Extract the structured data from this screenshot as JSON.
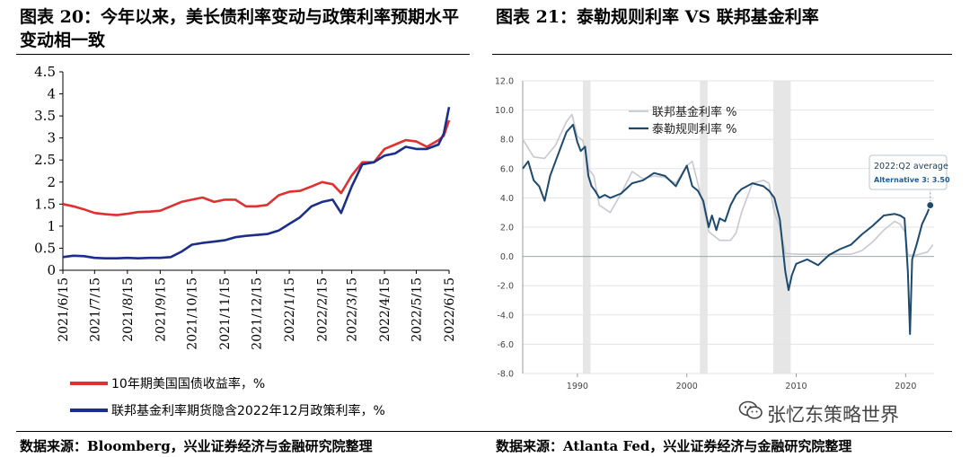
{
  "left_panel": {
    "title": "图表 20：今年以来，美长债利率变动与政策利率预期水平变动相一致",
    "source": "数据来源：Bloomberg，兴业证券经济与金融研究院整理"
  },
  "right_panel": {
    "title": "图表 21：泰勒规则利率 VS 联邦基金利率",
    "source": "数据来源：Atlanta Fed，兴业证券经济与金融研究院整理"
  },
  "watermark": {
    "text": "张忆东策略世界",
    "icon": "wechat-icon"
  },
  "chart_data": [
    {
      "id": "left",
      "type": "line",
      "title": "",
      "xlabel": "",
      "ylabel": "",
      "ylim": [
        0,
        4.5
      ],
      "yticks": [
        0,
        0.5,
        1,
        1.5,
        2,
        2.5,
        3,
        3.5,
        4,
        4.5
      ],
      "ytick_labels": [
        "0",
        "0.5",
        "1",
        "1.5",
        "2",
        "2.5",
        "3",
        "3.5",
        "4",
        "4.5"
      ],
      "xticks": [
        "2021/6/15",
        "2021/7/15",
        "2021/8/15",
        "2021/9/15",
        "2021/10/15",
        "2021/11/15",
        "2021/12/15",
        "2022/1/15",
        "2022/2/15",
        "2022/3/15",
        "2022/4/15",
        "2022/5/15",
        "2022/6/15"
      ],
      "grid": false,
      "legend_position": "bottom",
      "series": [
        {
          "name": "10年期美国国债收益率，%",
          "color": "#e03030",
          "x": [
            "2021/6/15",
            "2021/6/25",
            "2021/7/5",
            "2021/7/15",
            "2021/7/25",
            "2021/8/5",
            "2021/8/15",
            "2021/8/25",
            "2021/9/5",
            "2021/9/15",
            "2021/9/25",
            "2021/10/5",
            "2021/10/15",
            "2021/10/25",
            "2021/11/5",
            "2021/11/15",
            "2021/11/25",
            "2021/12/5",
            "2021/12/15",
            "2021/12/25",
            "2022/1/5",
            "2022/1/15",
            "2022/1/25",
            "2022/2/5",
            "2022/2/15",
            "2022/2/25",
            "2022/3/5",
            "2022/3/15",
            "2022/3/25",
            "2022/4/5",
            "2022/4/15",
            "2022/4/25",
            "2022/5/5",
            "2022/5/15",
            "2022/5/25",
            "2022/6/5",
            "2022/6/10",
            "2022/6/15"
          ],
          "values": [
            1.5,
            1.45,
            1.38,
            1.3,
            1.27,
            1.25,
            1.28,
            1.32,
            1.33,
            1.35,
            1.45,
            1.55,
            1.6,
            1.65,
            1.55,
            1.6,
            1.6,
            1.45,
            1.45,
            1.48,
            1.7,
            1.78,
            1.8,
            1.9,
            2.0,
            1.95,
            1.75,
            2.15,
            2.45,
            2.45,
            2.75,
            2.85,
            2.95,
            2.92,
            2.8,
            2.95,
            3.05,
            3.4
          ]
        },
        {
          "name": "联邦基金利率期货隐含2022年12月政策利率，%",
          "color": "#1a2e8a",
          "x": [
            "2021/6/15",
            "2021/6/25",
            "2021/7/5",
            "2021/7/15",
            "2021/7/25",
            "2021/8/5",
            "2021/8/15",
            "2021/8/25",
            "2021/9/5",
            "2021/9/15",
            "2021/9/25",
            "2021/10/5",
            "2021/10/15",
            "2021/10/25",
            "2021/11/5",
            "2021/11/15",
            "2021/11/25",
            "2021/12/5",
            "2021/12/15",
            "2021/12/25",
            "2022/1/5",
            "2022/1/15",
            "2022/1/25",
            "2022/2/5",
            "2022/2/15",
            "2022/2/25",
            "2022/3/5",
            "2022/3/15",
            "2022/3/25",
            "2022/4/5",
            "2022/4/15",
            "2022/4/25",
            "2022/5/5",
            "2022/5/15",
            "2022/5/25",
            "2022/6/5",
            "2022/6/10",
            "2022/6/15"
          ],
          "values": [
            0.3,
            0.33,
            0.32,
            0.28,
            0.27,
            0.27,
            0.28,
            0.27,
            0.28,
            0.28,
            0.3,
            0.42,
            0.58,
            0.62,
            0.65,
            0.68,
            0.75,
            0.78,
            0.8,
            0.82,
            0.9,
            1.05,
            1.2,
            1.45,
            1.55,
            1.6,
            1.3,
            1.9,
            2.4,
            2.45,
            2.6,
            2.65,
            2.8,
            2.75,
            2.75,
            2.85,
            3.1,
            3.7
          ]
        }
      ]
    },
    {
      "id": "right",
      "type": "line",
      "title": "",
      "xlabel": "",
      "ylabel": "",
      "ylim": [
        -8,
        12
      ],
      "yticks": [
        -8,
        -6,
        -4,
        -2,
        0,
        2,
        4,
        6,
        8,
        10,
        12
      ],
      "ytick_labels": [
        "-8.0",
        "-6.0",
        "-4.0",
        "-2.0",
        "0.0",
        "2.0",
        "4.0",
        "6.0",
        "8.0",
        "10.0",
        "12.0"
      ],
      "xlim": [
        1985,
        2022.6
      ],
      "xticks": [
        1990,
        2000,
        2010,
        2020
      ],
      "xtick_labels": [
        "1990",
        "2000",
        "2010",
        "2020"
      ],
      "grid": true,
      "legend_position": "top-left",
      "recession_bands": [
        [
          1990.5,
          1991.2
        ],
        [
          2001.2,
          2001.9
        ],
        [
          2007.9,
          2009.5
        ]
      ],
      "annotation": {
        "x": 2022.25,
        "y": 3.5,
        "label": "2022:Q2 average",
        "sublabel": "Alternative 3: 3.50"
      },
      "series": [
        {
          "name": "联邦基金利率 %",
          "color": "#c8c8d0",
          "x": [
            1985,
            1986,
            1987,
            1988,
            1989,
            1989.5,
            1990,
            1990.5,
            1991,
            1991.5,
            1992,
            1993,
            1994,
            1995,
            1996,
            1997,
            1998,
            1999,
            2000,
            2000.5,
            2001,
            2001.5,
            2002,
            2003,
            2004,
            2004.5,
            2005,
            2006,
            2007,
            2007.5,
            2008,
            2008.5,
            2009,
            2010,
            2015,
            2016,
            2017,
            2018,
            2019,
            2019.5,
            2020,
            2020.2,
            2021,
            2022,
            2022.5
          ],
          "values": [
            8.0,
            6.8,
            6.7,
            7.6,
            9.2,
            9.7,
            8.2,
            7.9,
            6.0,
            5.5,
            3.5,
            3.0,
            4.3,
            5.8,
            5.3,
            5.5,
            5.4,
            5.0,
            6.2,
            6.5,
            5.0,
            3.5,
            1.7,
            1.1,
            1.1,
            1.6,
            3.0,
            5.0,
            5.2,
            5.0,
            3.0,
            2.0,
            0.2,
            0.15,
            0.15,
            0.4,
            1.0,
            1.8,
            2.4,
            2.2,
            1.6,
            0.1,
            0.1,
            0.3,
            0.8
          ]
        },
        {
          "name": "泰勒规则利率 %",
          "color": "#1c4a6e",
          "x": [
            1985,
            1985.5,
            1986,
            1986.5,
            1987,
            1987.5,
            1988,
            1989,
            1989.6,
            1990,
            1990.3,
            1990.7,
            1991,
            1991.3,
            1991.6,
            1992,
            1992.5,
            1993,
            1994,
            1995,
            1996,
            1997,
            1998,
            1999,
            2000,
            2000.5,
            2001,
            2001.5,
            2002,
            2002.3,
            2002.7,
            2003,
            2003.5,
            2004,
            2004.5,
            2005,
            2006,
            2007,
            2007.5,
            2008,
            2008.5,
            2009,
            2009.3,
            2009.6,
            2010,
            2011,
            2012,
            2013,
            2014,
            2015,
            2016,
            2017,
            2018,
            2019,
            2019.5,
            2019.9,
            2020.2,
            2020.4,
            2020.6,
            2021,
            2021.5,
            2022,
            2022.25
          ],
          "values": [
            6.0,
            6.5,
            5.2,
            4.8,
            3.8,
            5.5,
            6.5,
            8.5,
            9.0,
            7.8,
            7.2,
            7.5,
            5.5,
            4.8,
            4.5,
            4.0,
            4.2,
            4.0,
            4.3,
            5.0,
            5.2,
            5.7,
            5.5,
            4.8,
            6.2,
            4.8,
            4.5,
            3.8,
            2.0,
            2.8,
            1.8,
            2.6,
            2.4,
            3.5,
            4.2,
            4.6,
            5.0,
            4.8,
            4.5,
            4.0,
            2.5,
            -1.0,
            -2.3,
            -1.3,
            -0.5,
            -0.2,
            -0.6,
            0.1,
            0.5,
            0.8,
            1.5,
            2.1,
            2.8,
            2.9,
            2.8,
            2.6,
            -1.0,
            -5.3,
            -0.2,
            0.8,
            2.2,
            3.0,
            3.5
          ]
        }
      ]
    }
  ]
}
